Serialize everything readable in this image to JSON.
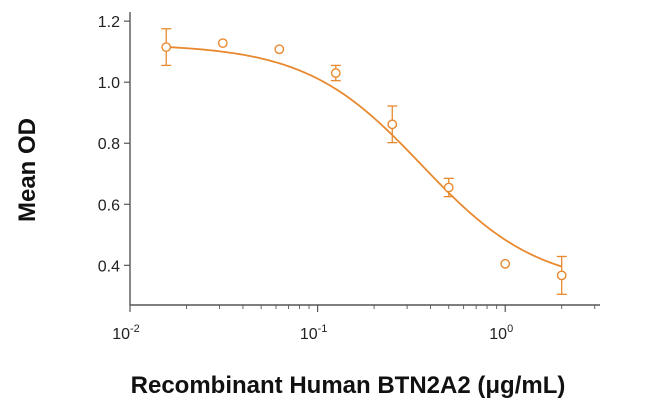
{
  "chart_data": {
    "type": "scatter",
    "title": "",
    "xlabel": "Recombinant Human BTN2A2 (μg/mL)",
    "ylabel": "Mean OD",
    "x_scale": "log",
    "xlim": [
      0.01,
      3.2
    ],
    "ylim": [
      0.27,
      1.23
    ],
    "x_ticks": [
      {
        "value": 0.01,
        "base": "10",
        "exp": "-2"
      },
      {
        "value": 0.1,
        "base": "10",
        "exp": "-1"
      },
      {
        "value": 1,
        "base": "10",
        "exp": "0"
      }
    ],
    "y_ticks": [
      {
        "value": 0.4,
        "label": "0.4"
      },
      {
        "value": 0.6,
        "label": "0.6"
      },
      {
        "value": 0.8,
        "label": "0.8"
      },
      {
        "value": 1.0,
        "label": "1.0"
      },
      {
        "value": 1.2,
        "label": "1.2"
      }
    ],
    "grid": false,
    "legend": "none",
    "color": "#e8892f",
    "series": [
      {
        "name": "",
        "points": [
          {
            "x": 0.0156,
            "y": 1.115,
            "err": 0.06
          },
          {
            "x": 0.03125,
            "y": 1.128,
            "err": 0.0
          },
          {
            "x": 0.0625,
            "y": 1.108,
            "err": 0.0
          },
          {
            "x": 0.125,
            "y": 1.03,
            "err": 0.025
          },
          {
            "x": 0.25,
            "y": 0.862,
            "err": 0.06
          },
          {
            "x": 0.5,
            "y": 0.655,
            "err": 0.03
          },
          {
            "x": 1.0,
            "y": 0.405,
            "err": 0.0
          },
          {
            "x": 2.0,
            "y": 0.367,
            "err": 0.062
          }
        ],
        "fit": {
          "model": "4PL",
          "top": 1.125,
          "bottom": 0.33,
          "ec50": 0.36,
          "hill": 1.4
        }
      }
    ]
  }
}
